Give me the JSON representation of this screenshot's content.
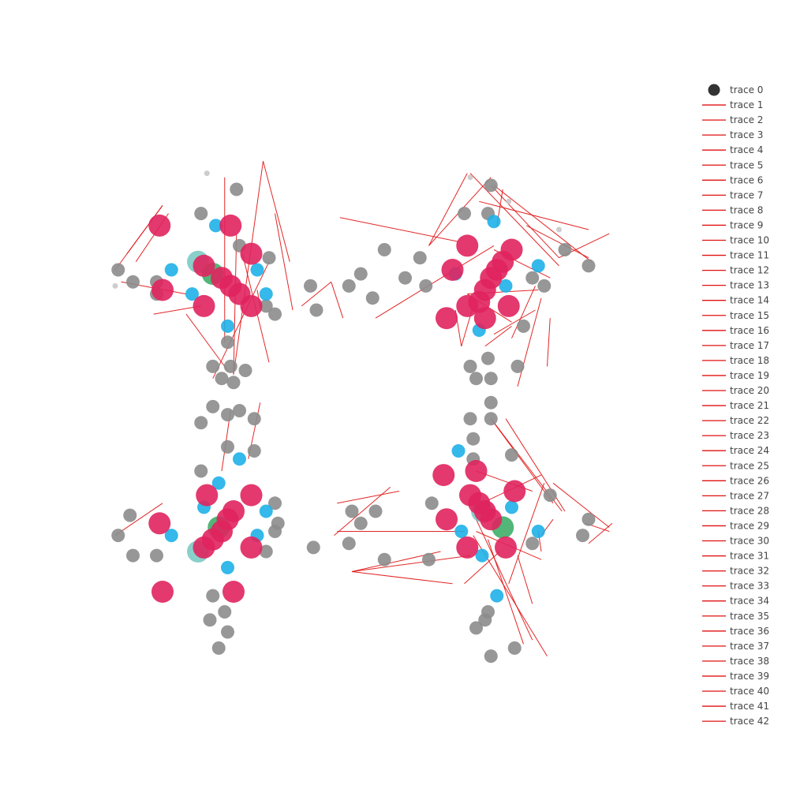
{
  "colors": {
    "node_gray": "#8c8c8c",
    "node_light": "#c8c8c8",
    "node_blue": "#1fb0e8",
    "node_pink": "#e0245e",
    "node_green": "#3fae6a",
    "node_teal": "#6cc3bd",
    "edge_red": "#e01010",
    "legend_marker": "#333333"
  },
  "chart_data": {
    "type": "scatter",
    "title": "",
    "xlabel": "",
    "ylabel": "",
    "axes_visible": false,
    "grid": false,
    "legend_placement": "right",
    "legend": [
      "trace 0",
      "trace 1",
      "trace 2",
      "trace 3",
      "trace 4",
      "trace 5",
      "trace 6",
      "trace 7",
      "trace 8",
      "trace 9",
      "trace 10",
      "trace 11",
      "trace 12",
      "trace 13",
      "trace 14",
      "trace 15",
      "trace 16",
      "trace 17",
      "trace 18",
      "trace 19",
      "trace 20",
      "trace 21",
      "trace 22",
      "trace 23",
      "trace 24",
      "trace 25",
      "trace 26",
      "trace 27",
      "trace 28",
      "trace 29",
      "trace 30",
      "trace 31",
      "trace 32",
      "trace 33",
      "trace 34",
      "trace 35",
      "trace 36",
      "trace 37",
      "trace 38",
      "trace 39",
      "trace 40",
      "trace 41",
      "trace 42"
    ],
    "nodes": [
      [
        -4.1,
        7.4,
        "light",
        1
      ],
      [
        -3.1,
        7.0,
        "gray",
        2
      ],
      [
        -4.3,
        6.4,
        "gray",
        2
      ],
      [
        -5.7,
        6.1,
        "pink",
        3
      ],
      [
        -3.8,
        6.1,
        "blue",
        2
      ],
      [
        -3.3,
        6.1,
        "pink",
        3
      ],
      [
        -3.0,
        5.6,
        "gray",
        2
      ],
      [
        -2.6,
        5.4,
        "pink",
        3
      ],
      [
        -4.4,
        5.2,
        "teal",
        3
      ],
      [
        -4.2,
        5.1,
        "pink",
        3
      ],
      [
        -3.9,
        4.9,
        "green",
        3
      ],
      [
        -3.6,
        4.8,
        "pink",
        3
      ],
      [
        -3.3,
        4.6,
        "pink",
        3
      ],
      [
        -3.0,
        4.4,
        "pink",
        3
      ],
      [
        -2.6,
        4.1,
        "pink",
        3
      ],
      [
        -5.6,
        4.5,
        "pink",
        3
      ],
      [
        -4.2,
        4.1,
        "pink",
        3
      ],
      [
        -5.3,
        5.0,
        "blue",
        2
      ],
      [
        -2.4,
        5.0,
        "blue",
        2
      ],
      [
        -4.6,
        4.4,
        "blue",
        2
      ],
      [
        -2.1,
        4.4,
        "blue",
        2
      ],
      [
        -3.4,
        3.6,
        "blue",
        2
      ],
      [
        -7.1,
        5.0,
        "gray",
        2
      ],
      [
        -6.6,
        4.7,
        "gray",
        2
      ],
      [
        -5.8,
        4.7,
        "gray",
        2
      ],
      [
        -5.8,
        4.4,
        "gray",
        2
      ],
      [
        -2.0,
        5.3,
        "gray",
        2
      ],
      [
        -2.1,
        4.1,
        "gray",
        2
      ],
      [
        -1.8,
        3.9,
        "gray",
        2
      ],
      [
        -3.4,
        3.2,
        "gray",
        2
      ],
      [
        -3.9,
        2.6,
        "gray",
        2
      ],
      [
        -3.3,
        2.6,
        "gray",
        2
      ],
      [
        -3.6,
        2.3,
        "gray",
        2
      ],
      [
        -3.2,
        2.2,
        "gray",
        2
      ],
      [
        -2.8,
        2.5,
        "gray",
        2
      ],
      [
        -7.2,
        4.6,
        "light",
        1
      ],
      [
        4.8,
        7.3,
        "light",
        1
      ],
      [
        5.5,
        7.1,
        "gray",
        2
      ],
      [
        6.1,
        6.7,
        "light",
        1
      ],
      [
        5.4,
        6.4,
        "gray",
        2
      ],
      [
        4.6,
        6.4,
        "gray",
        2
      ],
      [
        5.6,
        6.2,
        "blue",
        2
      ],
      [
        4.7,
        5.6,
        "pink",
        3
      ],
      [
        6.2,
        5.5,
        "pink",
        3
      ],
      [
        4.2,
        5.0,
        "pink",
        3
      ],
      [
        5.9,
        5.2,
        "pink",
        3
      ],
      [
        5.7,
        5.0,
        "pink",
        3
      ],
      [
        5.5,
        4.8,
        "pink",
        3
      ],
      [
        5.3,
        4.5,
        "pink",
        3
      ],
      [
        5.1,
        4.2,
        "pink",
        3
      ],
      [
        4.7,
        4.1,
        "pink",
        3
      ],
      [
        4.0,
        3.8,
        "pink",
        3
      ],
      [
        5.3,
        3.8,
        "pink",
        3
      ],
      [
        6.1,
        4.1,
        "pink",
        3
      ],
      [
        4.3,
        4.9,
        "blue",
        2
      ],
      [
        6.0,
        4.6,
        "blue",
        2
      ],
      [
        7.1,
        5.1,
        "blue",
        2
      ],
      [
        5.1,
        3.5,
        "blue",
        2
      ],
      [
        6.9,
        4.8,
        "gray",
        2
      ],
      [
        7.3,
        4.6,
        "gray",
        2
      ],
      [
        8.0,
        5.5,
        "gray",
        2
      ],
      [
        8.8,
        5.1,
        "gray",
        2
      ],
      [
        1.9,
        5.5,
        "gray",
        2
      ],
      [
        1.1,
        4.9,
        "gray",
        2
      ],
      [
        0.7,
        4.6,
        "gray",
        2
      ],
      [
        1.5,
        4.3,
        "gray",
        2
      ],
      [
        3.1,
        5.3,
        "gray",
        2
      ],
      [
        2.6,
        4.8,
        "gray",
        2
      ],
      [
        6.6,
        3.6,
        "gray",
        2
      ],
      [
        5.4,
        2.8,
        "gray",
        2
      ],
      [
        4.8,
        2.6,
        "gray",
        2
      ],
      [
        5.0,
        2.3,
        "gray",
        2
      ],
      [
        5.5,
        2.3,
        "gray",
        2
      ],
      [
        6.4,
        2.6,
        "gray",
        2
      ],
      [
        3.3,
        4.6,
        "gray",
        2
      ],
      [
        7.8,
        6.0,
        "light",
        1
      ],
      [
        -3.9,
        1.6,
        "gray",
        2
      ],
      [
        -3.4,
        1.4,
        "gray",
        2
      ],
      [
        -3.0,
        1.5,
        "gray",
        2
      ],
      [
        -2.5,
        1.3,
        "gray",
        2
      ],
      [
        -4.3,
        1.2,
        "gray",
        2
      ],
      [
        -3.4,
        0.6,
        "gray",
        2
      ],
      [
        -2.5,
        0.5,
        "gray",
        2
      ],
      [
        -3.0,
        0.3,
        "blue",
        2
      ],
      [
        -4.3,
        0.0,
        "gray",
        2
      ],
      [
        -3.7,
        -0.3,
        "blue",
        2
      ],
      [
        -4.1,
        -0.6,
        "pink",
        3
      ],
      [
        -2.6,
        -0.6,
        "pink",
        3
      ],
      [
        -3.2,
        -1.0,
        "pink",
        3
      ],
      [
        -3.4,
        -1.2,
        "pink",
        3
      ],
      [
        -3.6,
        -1.5,
        "pink",
        3
      ],
      [
        -3.9,
        -1.7,
        "pink",
        3
      ],
      [
        -4.2,
        -1.9,
        "pink",
        3
      ],
      [
        -3.7,
        -1.4,
        "green",
        3
      ],
      [
        -4.4,
        -2.0,
        "teal",
        3
      ],
      [
        -5.7,
        -1.3,
        "pink",
        3
      ],
      [
        -2.6,
        -1.9,
        "pink",
        3
      ],
      [
        -5.6,
        -3.0,
        "pink",
        3
      ],
      [
        -3.2,
        -3.0,
        "pink",
        3
      ],
      [
        -5.3,
        -1.6,
        "blue",
        2
      ],
      [
        -2.4,
        -1.6,
        "blue",
        2
      ],
      [
        -4.2,
        -0.9,
        "blue",
        2
      ],
      [
        -2.1,
        -1.0,
        "blue",
        2
      ],
      [
        -3.4,
        -2.4,
        "blue",
        2
      ],
      [
        -7.1,
        -1.6,
        "gray",
        2
      ],
      [
        -6.7,
        -1.1,
        "gray",
        2
      ],
      [
        -6.6,
        -2.1,
        "gray",
        2
      ],
      [
        -5.8,
        -2.1,
        "gray",
        2
      ],
      [
        -2.1,
        -2.0,
        "gray",
        2
      ],
      [
        -1.7,
        -1.3,
        "gray",
        2
      ],
      [
        -1.8,
        -0.8,
        "gray",
        2
      ],
      [
        -4.0,
        -3.7,
        "gray",
        2
      ],
      [
        -3.4,
        -4.0,
        "gray",
        2
      ],
      [
        -3.7,
        -4.4,
        "gray",
        2
      ],
      [
        -3.9,
        -3.1,
        "gray",
        2
      ],
      [
        -3.5,
        -3.5,
        "gray",
        2
      ],
      [
        5.5,
        1.7,
        "gray",
        2
      ],
      [
        4.8,
        1.3,
        "gray",
        2
      ],
      [
        5.5,
        1.3,
        "gray",
        2
      ],
      [
        4.9,
        0.8,
        "gray",
        2
      ],
      [
        4.9,
        0.3,
        "gray",
        2
      ],
      [
        4.4,
        0.5,
        "blue",
        2
      ],
      [
        6.2,
        0.4,
        "gray",
        2
      ],
      [
        3.9,
        -0.1,
        "pink",
        3
      ],
      [
        5.0,
        0.0,
        "pink",
        3
      ],
      [
        6.3,
        -0.5,
        "pink",
        3
      ],
      [
        4.8,
        -0.6,
        "pink",
        3
      ],
      [
        5.1,
        -0.8,
        "pink",
        3
      ],
      [
        5.3,
        -1.0,
        "pink",
        3
      ],
      [
        5.5,
        -1.2,
        "pink",
        3
      ],
      [
        4.0,
        -1.2,
        "pink",
        3
      ],
      [
        4.7,
        -1.9,
        "pink",
        3
      ],
      [
        6.0,
        -1.9,
        "pink",
        3
      ],
      [
        5.2,
        -1.0,
        "teal",
        3
      ],
      [
        5.9,
        -1.4,
        "green",
        3
      ],
      [
        6.2,
        -0.9,
        "blue",
        2
      ],
      [
        4.5,
        -1.5,
        "blue",
        2
      ],
      [
        7.1,
        -1.5,
        "blue",
        2
      ],
      [
        5.2,
        -2.1,
        "blue",
        2
      ],
      [
        5.7,
        -3.1,
        "blue",
        2
      ],
      [
        1.1,
        -1.3,
        "gray",
        2
      ],
      [
        0.8,
        -1.0,
        "gray",
        2
      ],
      [
        0.7,
        -1.8,
        "gray",
        2
      ],
      [
        1.6,
        -1.0,
        "gray",
        2
      ],
      [
        1.9,
        -2.2,
        "gray",
        2
      ],
      [
        3.4,
        -2.2,
        "gray",
        2
      ],
      [
        3.5,
        -0.8,
        "gray",
        2
      ],
      [
        7.5,
        -0.6,
        "gray",
        2
      ],
      [
        6.9,
        -1.8,
        "gray",
        2
      ],
      [
        8.8,
        -1.2,
        "gray",
        2
      ],
      [
        8.6,
        -1.6,
        "gray",
        2
      ],
      [
        5.4,
        -3.5,
        "gray",
        2
      ],
      [
        5.0,
        -3.9,
        "gray",
        2
      ],
      [
        5.5,
        -4.6,
        "gray",
        2
      ],
      [
        6.3,
        -4.4,
        "gray",
        2
      ],
      [
        5.3,
        -3.7,
        "gray",
        2
      ],
      [
        -0.6,
        4.6,
        "gray",
        2
      ],
      [
        -0.4,
        4.0,
        "gray",
        2
      ],
      [
        -1.8,
        -1.5,
        "gray",
        2
      ],
      [
        -0.5,
        -1.9,
        "gray",
        2
      ]
    ],
    "edges": [
      [
        -3.5,
        7.3,
        -3.5,
        3.2
      ],
      [
        -2.2,
        7.7,
        -1.3,
        5.2
      ],
      [
        -2.2,
        7.7,
        -3.2,
        2.4
      ],
      [
        -1.8,
        6.4,
        -1.2,
        4.0
      ],
      [
        -5.6,
        6.6,
        -7.2,
        5.0
      ],
      [
        -5.6,
        6.6,
        -6.8,
        5.4
      ],
      [
        -5.4,
        6.4,
        -6.5,
        5.2
      ],
      [
        -2.0,
        5.2,
        -3.9,
        2.3
      ],
      [
        -3.1,
        5.9,
        -3.2,
        2.4
      ],
      [
        -2.9,
        5.4,
        -2.0,
        2.7
      ],
      [
        -4.3,
        4.1,
        -5.9,
        3.9
      ],
      [
        -4.8,
        4.4,
        -7.0,
        4.7
      ],
      [
        -4.8,
        3.9,
        -3.4,
        2.5
      ],
      [
        -3.3,
        1.5,
        -3.6,
        0.0
      ],
      [
        -2.3,
        1.7,
        -2.7,
        0.3
      ],
      [
        -2.4,
        4.5,
        -2.3,
        4.1
      ],
      [
        -5.6,
        -0.8,
        -7.2,
        -1.6
      ],
      [
        0.1,
        4.7,
        -0.9,
        4.1
      ],
      [
        0.1,
        4.7,
        0.5,
        3.8
      ],
      [
        0.4,
        6.3,
        4.4,
        5.7
      ],
      [
        1.6,
        3.8,
        5.6,
        5.6
      ],
      [
        3.4,
        5.6,
        4.7,
        7.4
      ],
      [
        3.4,
        5.6,
        5.5,
        7.3
      ],
      [
        4.8,
        7.4,
        7.8,
        5.1
      ],
      [
        5.5,
        7.1,
        7.8,
        5.3
      ],
      [
        5.7,
        6.1,
        5.9,
        7.0
      ],
      [
        5.6,
        7.1,
        8.9,
        5.2
      ],
      [
        5.1,
        6.7,
        8.8,
        6.0
      ],
      [
        6.7,
        6.1,
        8.8,
        5.3
      ],
      [
        7.8,
        5.3,
        9.5,
        5.9
      ],
      [
        4.7,
        4.4,
        7.1,
        4.5
      ],
      [
        4.7,
        4.4,
        6.2,
        3.7
      ],
      [
        5.6,
        5.5,
        7.5,
        4.8
      ],
      [
        6.2,
        3.6,
        5.3,
        3.1
      ],
      [
        5.6,
        3.4,
        7.0,
        4.0
      ],
      [
        4.5,
        3.1,
        4.3,
        4.0
      ],
      [
        4.5,
        3.1,
        4.9,
        4.1
      ],
      [
        7.4,
        2.6,
        7.5,
        3.8
      ],
      [
        6.2,
        3.3,
        7.0,
        4.6
      ],
      [
        6.4,
        2.1,
        7.2,
        4.3
      ],
      [
        5.5,
        1.3,
        7.6,
        -0.8
      ],
      [
        6.0,
        1.3,
        8.0,
        -1.0
      ],
      [
        5.5,
        1.3,
        7.9,
        -1.0
      ],
      [
        0.3,
        -0.8,
        2.4,
        -0.5
      ],
      [
        0.2,
        -1.6,
        2.1,
        -0.4
      ],
      [
        0.3,
        -1.5,
        4.6,
        -1.5
      ],
      [
        0.8,
        -2.5,
        4.2,
        -2.8
      ],
      [
        0.8,
        -2.5,
        4.8,
        -2.1
      ],
      [
        0.8,
        -2.5,
        3.8,
        -2.0
      ],
      [
        4.9,
        -0.9,
        7.2,
        -0.1
      ],
      [
        5.0,
        -1.5,
        7.2,
        -2.2
      ],
      [
        5.4,
        -1.7,
        6.6,
        -4.3
      ],
      [
        5.0,
        -1.2,
        6.9,
        -4.2
      ],
      [
        4.9,
        -1.6,
        7.4,
        -4.6
      ],
      [
        6.4,
        -2.1,
        6.9,
        -3.3
      ],
      [
        7.1,
        -1.5,
        7.2,
        -2.0
      ],
      [
        7.2,
        -1.6,
        7.6,
        -1.2
      ],
      [
        4.6,
        -2.8,
        5.8,
        -2.0
      ],
      [
        6.1,
        -2.8,
        7.3,
        -0.3
      ],
      [
        5.0,
        0.0,
        6.9,
        -0.5
      ],
      [
        7.6,
        -0.3,
        9.5,
        -1.4
      ],
      [
        9.6,
        -1.3,
        8.8,
        -1.8
      ],
      [
        9.5,
        -1.5,
        8.7,
        -1.3
      ]
    ]
  }
}
